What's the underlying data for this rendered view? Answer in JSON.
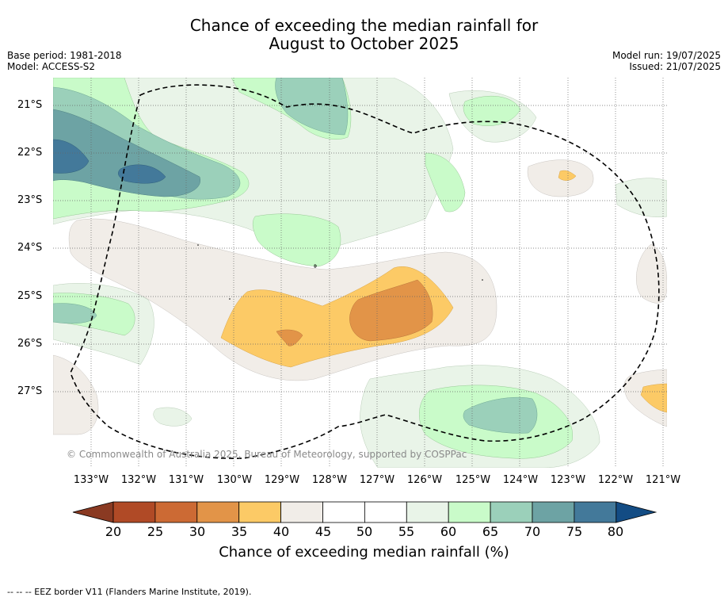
{
  "title_line1": "Chance of exceeding the median rainfall for",
  "title_line2": "August to October 2025",
  "base_period": "Base period: 1981-2018",
  "model": "Model: ACCESS-S2",
  "model_run": "Model run: 19/07/2025",
  "issued": "Issued: 21/07/2025",
  "copyright": "© Commonwealth of Australia 2025, Bureau of Meteorology, supported by COSPPac",
  "longitude_labels": [
    "133°W",
    "132°W",
    "131°W",
    "130°W",
    "129°W",
    "128°W",
    "127°W",
    "126°W",
    "125°W",
    "124°W",
    "123°W",
    "122°W",
    "121°W"
  ],
  "latitude_labels": [
    "21°S",
    "22°S",
    "23°S",
    "24°S",
    "25°S",
    "26°S",
    "27°S"
  ],
  "colorbar": {
    "title": "Chance of exceeding median rainfall (%)",
    "ticks": [
      "20",
      "25",
      "30",
      "35",
      "40",
      "45",
      "50",
      "55",
      "60",
      "65",
      "70",
      "75",
      "80"
    ],
    "colors": [
      "#b04a26",
      "#cc6a34",
      "#e29448",
      "#fcca66",
      "#f1ede8",
      "#ffffff",
      "#ffffff",
      "#e9f4e8",
      "#c9fbc9",
      "#9bd0ba",
      "#6da3a4",
      "#43799a"
    ],
    "under_color": "#8a3a22",
    "over_color": "#134c84"
  },
  "footnote": "--  --  -- EEZ border V11 (Flanders Marine Institute, 2019)."
}
